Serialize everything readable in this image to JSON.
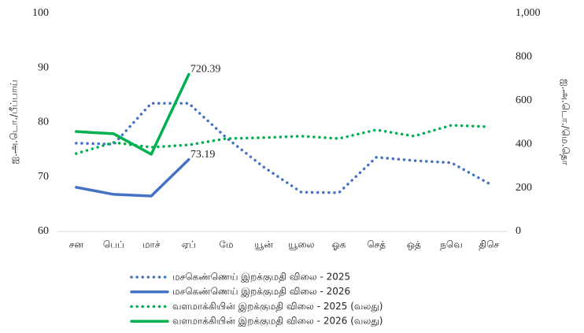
{
  "chart_data": {
    "type": "line",
    "categories": [
      "சன",
      "பெப்",
      "மாச்",
      "ஏப்",
      "மே",
      "யூன்",
      "யூலை",
      "ஓக",
      "செத்",
      "ஒத்",
      "நவெ",
      "திசெ"
    ],
    "ylabel": "ஐ.அ.டொ./பீப்பாய்",
    "y2label": "ஐ.அ.டொ./மெ.தொ",
    "ylim": [
      60,
      100
    ],
    "yticks": [
      60,
      70,
      80,
      90,
      100
    ],
    "y2lim": [
      0,
      1000
    ],
    "y2ticks": [
      0,
      200,
      400,
      600,
      800,
      {
        "value": 1000,
        "label": "1,000"
      }
    ],
    "grid": false,
    "legend": "bottom",
    "series": [
      {
        "name": "மசகெண்ணெய் இறக்குமதி விலை - 2025",
        "color": "#4472c4",
        "dash": "dotted",
        "axis": "y",
        "values": [
          76.2,
          76.0,
          83.5,
          83.5,
          77.2,
          71.8,
          67.2,
          67.1,
          73.6,
          73.0,
          72.6,
          68.8
        ]
      },
      {
        "name": "மசகெண்ணெய் இறக்குமதி விலை - 2026",
        "color": "#4472c4",
        "dash": "solid",
        "axis": "y",
        "values": [
          68.1,
          66.8,
          66.5,
          73.19,
          null,
          null,
          null,
          null,
          null,
          null,
          null,
          null
        ]
      },
      {
        "name": "வளமாக்கியின் இறக்குமதி விலை - 2025 (வலது)",
        "color": "#00b050",
        "dash": "dotted",
        "axis": "y2",
        "values": [
          357,
          408,
          386,
          397,
          426,
          430,
          437,
          426,
          466,
          437,
          487,
          480
        ]
      },
      {
        "name": "வளமாக்கியின் இறக்குமதி விலை - 2026 (வலது)",
        "color": "#00b050",
        "dash": "solid",
        "axis": "y2",
        "values": [
          458,
          448,
          354,
          720.39,
          null,
          null,
          null,
          null,
          null,
          null,
          null,
          null
        ]
      }
    ]
  }
}
